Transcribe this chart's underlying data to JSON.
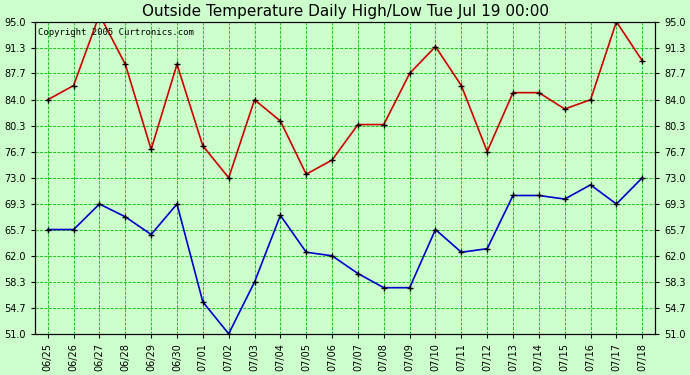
{
  "title": "Outside Temperature Daily High/Low Tue Jul 19 00:00",
  "copyright": "Copyright 2005 Curtronics.com",
  "x_labels": [
    "06/25",
    "06/26",
    "06/27",
    "06/28",
    "06/29",
    "06/30",
    "07/01",
    "07/02",
    "07/03",
    "07/04",
    "07/05",
    "07/06",
    "07/07",
    "07/08",
    "07/09",
    "07/10",
    "07/11",
    "07/12",
    "07/13",
    "07/14",
    "07/15",
    "07/16",
    "07/17",
    "07/18"
  ],
  "high_temps": [
    84.0,
    86.0,
    96.0,
    89.0,
    77.0,
    89.0,
    77.5,
    73.0,
    84.0,
    81.0,
    73.5,
    75.5,
    80.5,
    80.5,
    87.7,
    91.5,
    86.0,
    76.7,
    85.0,
    85.0,
    82.7,
    84.0,
    95.0,
    89.5
  ],
  "low_temps": [
    65.7,
    65.7,
    69.3,
    67.5,
    65.0,
    69.3,
    55.5,
    51.0,
    58.3,
    67.7,
    62.5,
    62.0,
    59.5,
    57.5,
    57.5,
    65.7,
    62.5,
    63.0,
    70.5,
    70.5,
    70.0,
    72.0,
    69.3,
    73.0
  ],
  "ylim_min": 51.0,
  "ylim_max": 95.0,
  "yticks": [
    51.0,
    54.7,
    58.3,
    62.0,
    65.7,
    69.3,
    73.0,
    76.7,
    80.3,
    84.0,
    87.7,
    91.3,
    95.0
  ],
  "high_color": "#cc0000",
  "low_color": "#0000cc",
  "marker_color": "#000000",
  "bg_color": "#ccffcc",
  "grid_color": "#00bb00",
  "title_fontsize": 11,
  "tick_fontsize": 7,
  "copyright_fontsize": 6.5
}
